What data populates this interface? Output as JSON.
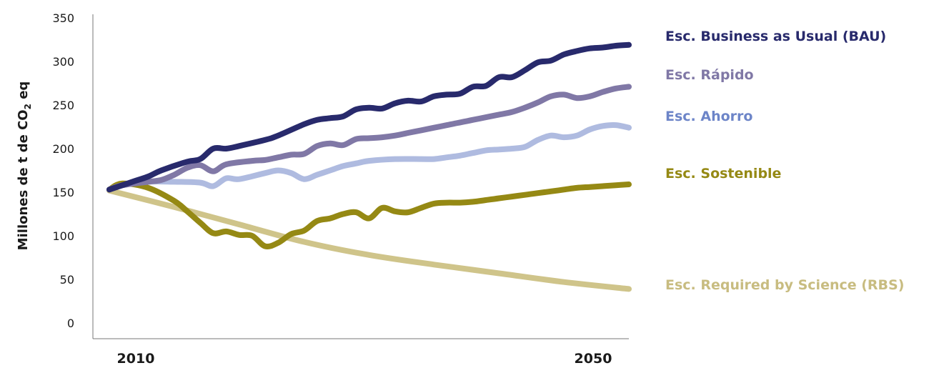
{
  "chart_data": {
    "type": "line",
    "ylabel_parts": [
      "Millones de t de CO",
      "2",
      " eq"
    ],
    "ylim": [
      0,
      350
    ],
    "yticks": [
      "0",
      "50",
      "100",
      "150",
      "200",
      "250",
      "300",
      "350"
    ],
    "ytick_values": [
      0,
      50,
      100,
      150,
      200,
      250,
      300,
      350
    ],
    "xticks": [
      "2010",
      "2050"
    ],
    "xtick_values": [
      2010,
      2050
    ],
    "xlim": [
      2010,
      2050
    ],
    "grid": false,
    "legend_position": "right",
    "series": [
      {
        "name": "Esc. Business as Usual (BAU)",
        "color": "#282a6c",
        "label_color": "#282a6c",
        "x": [
          2010,
          2012,
          2013,
          2014,
          2016,
          2017,
          2018,
          2019,
          2020,
          2022,
          2023,
          2025,
          2026,
          2027,
          2028,
          2029,
          2030,
          2031,
          2032,
          2033,
          2034,
          2035,
          2036,
          2037,
          2038,
          2039,
          2040,
          2041,
          2042,
          2043,
          2044,
          2045,
          2046,
          2047,
          2048,
          2049,
          2050
        ],
        "y": [
          153,
          163,
          168,
          175,
          185,
          188,
          200,
          200,
          203,
          210,
          215,
          228,
          233,
          235,
          237,
          245,
          247,
          246,
          252,
          255,
          254,
          260,
          262,
          263,
          271,
          272,
          282,
          282,
          290,
          299,
          301,
          308,
          312,
          315,
          316,
          318,
          319
        ]
      },
      {
        "name": "Esc. Rápido",
        "color": "#8078a6",
        "label_color": "#8078a6",
        "x": [
          2010,
          2011,
          2013,
          2014,
          2015,
          2016,
          2017,
          2018,
          2019,
          2021,
          2022,
          2023,
          2024,
          2025,
          2026,
          2027,
          2028,
          2029,
          2030,
          2031,
          2032,
          2033,
          2034,
          2035,
          2036,
          2037,
          2038,
          2039,
          2040,
          2041,
          2042,
          2043,
          2044,
          2045,
          2046,
          2047,
          2048,
          2049,
          2050
        ],
        "y": [
          153,
          158,
          162,
          164,
          170,
          178,
          181,
          174,
          182,
          186,
          187,
          190,
          193,
          194,
          203,
          206,
          204,
          211,
          212,
          213,
          215,
          218,
          221,
          224,
          227,
          230,
          233,
          236,
          239,
          242,
          247,
          253,
          260,
          262,
          258,
          260,
          265,
          269,
          271
        ]
      },
      {
        "name": "Esc. Ahorro",
        "color": "#afbbe0",
        "label_color": "#6d85c8",
        "x": [
          2010,
          2011,
          2013,
          2015,
          2017,
          2018,
          2019,
          2020,
          2022,
          2023,
          2024,
          2025,
          2026,
          2027,
          2028,
          2029,
          2030,
          2032,
          2034,
          2035,
          2036,
          2037,
          2038,
          2039,
          2040,
          2041,
          2042,
          2043,
          2044,
          2045,
          2046,
          2047,
          2048,
          2049,
          2050
        ],
        "y": [
          153,
          158,
          162,
          162,
          161,
          157,
          166,
          165,
          172,
          175,
          172,
          165,
          170,
          175,
          180,
          183,
          186,
          188,
          188,
          188,
          190,
          192,
          195,
          198,
          199,
          200,
          202,
          210,
          215,
          213,
          215,
          222,
          226,
          227,
          224
        ]
      },
      {
        "name": "Esc. Sostenible",
        "color": "#958914",
        "label_color": "#958914",
        "x": [
          2010,
          2011,
          2013,
          2015,
          2016,
          2017,
          2018,
          2019,
          2020,
          2021,
          2022,
          2023,
          2024,
          2025,
          2026,
          2027,
          2028,
          2029,
          2030,
          2031,
          2032,
          2033,
          2034,
          2035,
          2036,
          2037,
          2038,
          2039,
          2040,
          2041,
          2042,
          2043,
          2044,
          2045,
          2046,
          2047,
          2048,
          2049,
          2050
        ],
        "y": [
          153,
          160,
          155,
          140,
          128,
          115,
          103,
          105,
          101,
          100,
          88,
          92,
          102,
          106,
          117,
          120,
          125,
          127,
          120,
          132,
          128,
          127,
          132,
          137,
          138,
          138,
          139,
          141,
          143,
          145,
          147,
          149,
          151,
          153,
          155,
          156,
          157,
          158,
          159
        ]
      },
      {
        "name": "Esc. Required by Science (RBS)",
        "color": "#cfc48a",
        "label_color": "#c8bc80",
        "x": [
          2010,
          2015,
          2020,
          2025,
          2030,
          2035,
          2040,
          2045,
          2050
        ],
        "y": [
          152,
          133,
          113,
          93,
          78,
          67,
          57,
          47,
          39
        ]
      }
    ]
  }
}
